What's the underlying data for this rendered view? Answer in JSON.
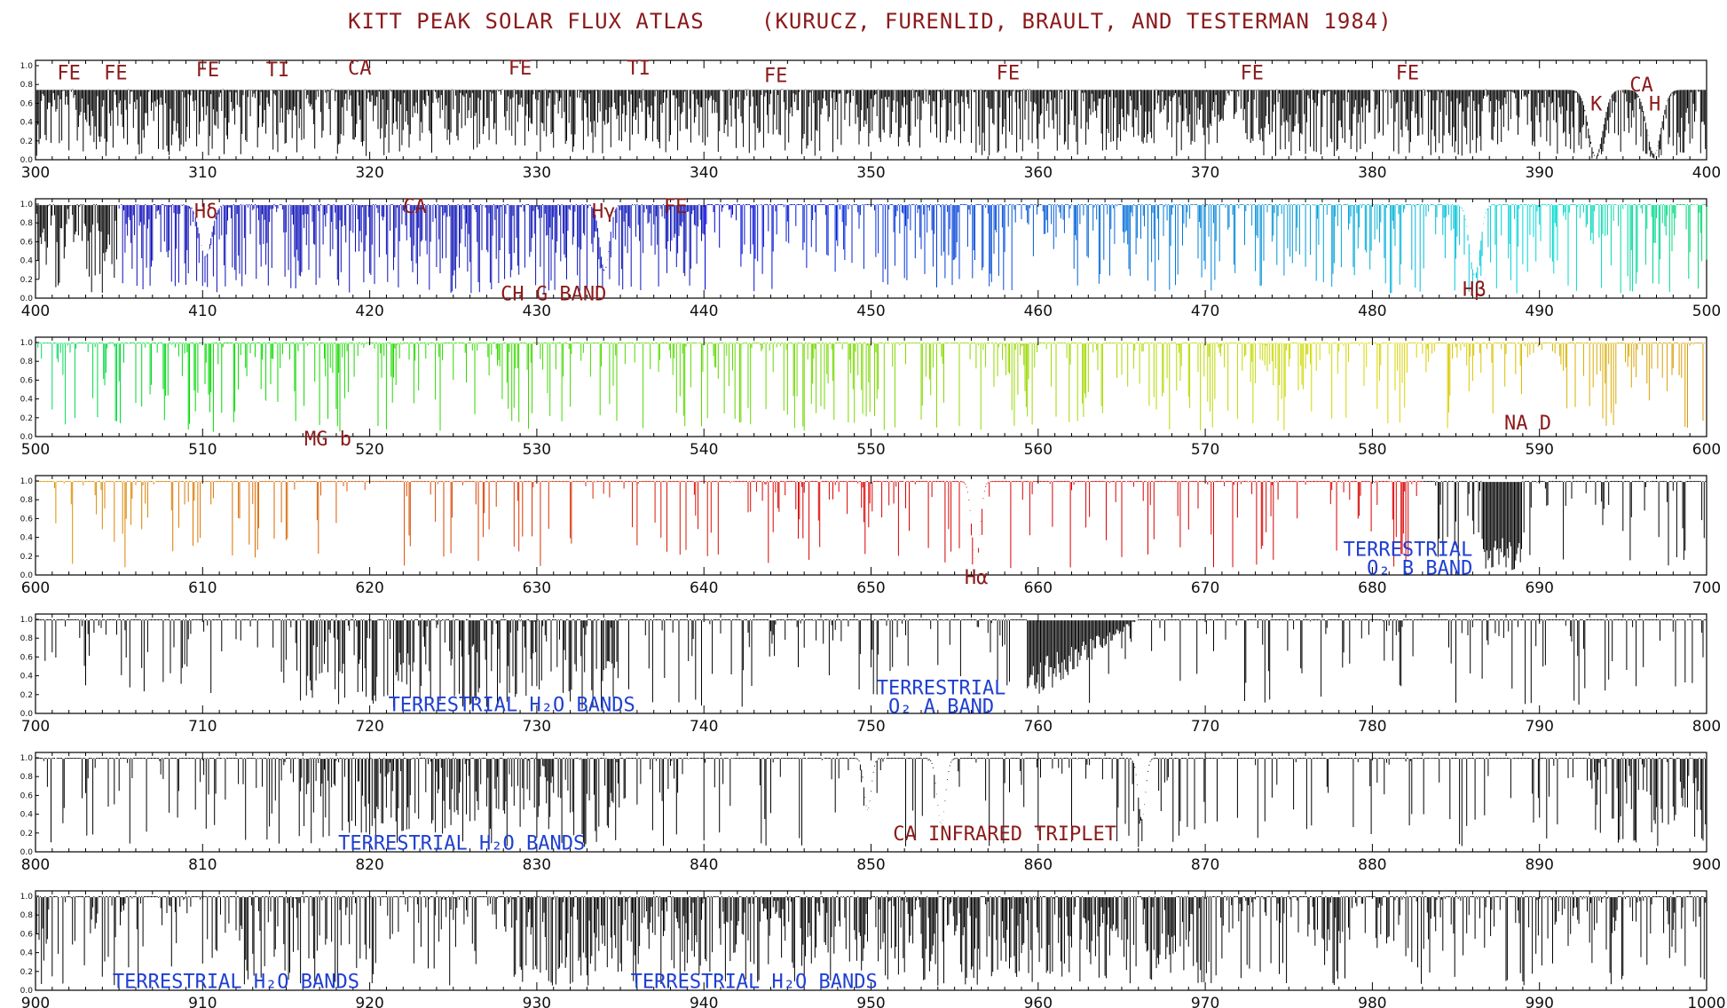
{
  "colors": {
    "line_annotation": "#8b1a1a",
    "band_annotation": "#1f3fd1",
    "axis": "#000000"
  },
  "chart_data": {
    "type": "line",
    "title_left": "KITT PEAK SOLAR FLUX ATLAS",
    "title_right": "(KURUCZ, FURENLID, BRAULT, AND TESTERMAN 1984)",
    "ylim": [
      0,
      1.0
    ],
    "yticks": [
      "0.0",
      "0.2",
      "0.4",
      "0.6",
      "0.8",
      "1.0"
    ],
    "grid": false,
    "panels": [
      {
        "xlim": [
          300,
          400
        ],
        "xticks": [
          "300",
          "310",
          "320",
          "330",
          "340",
          "350",
          "360",
          "370",
          "380",
          "390",
          "400"
        ],
        "annotations": [
          {
            "text": "FE",
            "x": 302,
            "y": 0.93,
            "color": "line"
          },
          {
            "text": "FE",
            "x": 304.8,
            "y": 0.93,
            "color": "line"
          },
          {
            "text": "FE",
            "x": 310.3,
            "y": 0.96,
            "color": "line"
          },
          {
            "text": "TI",
            "x": 314.5,
            "y": 0.96,
            "color": "line"
          },
          {
            "text": "CA",
            "x": 319.4,
            "y": 0.98,
            "color": "line"
          },
          {
            "text": "FE",
            "x": 329,
            "y": 0.98,
            "color": "line"
          },
          {
            "text": "TI",
            "x": 336.1,
            "y": 0.98,
            "color": "line"
          },
          {
            "text": "FE",
            "x": 344.3,
            "y": 0.9,
            "color": "line"
          },
          {
            "text": "FE",
            "x": 358.2,
            "y": 0.93,
            "color": "line"
          },
          {
            "text": "FE",
            "x": 372.8,
            "y": 0.93,
            "color": "line"
          },
          {
            "text": "FE",
            "x": 382.1,
            "y": 0.93,
            "color": "line"
          },
          {
            "text": "CA",
            "x": 396.1,
            "y": 0.8,
            "color": "line"
          },
          {
            "text": "K",
            "x": 393.4,
            "y": 0.6,
            "color": "line"
          },
          {
            "text": "H",
            "x": 396.9,
            "y": 0.6,
            "color": "line"
          }
        ]
      },
      {
        "xlim": [
          400,
          500
        ],
        "xticks": [
          "400",
          "410",
          "420",
          "430",
          "440",
          "450",
          "460",
          "470",
          "480",
          "490",
          "500"
        ],
        "annotations": [
          {
            "text": "Hδ",
            "x": 410.2,
            "y": 0.93,
            "color": "line"
          },
          {
            "text": "CA",
            "x": 422.7,
            "y": 0.98,
            "color": "line"
          },
          {
            "text": "Hγ",
            "x": 434.0,
            "y": 0.93,
            "color": "line"
          },
          {
            "text": "FE",
            "x": 438.3,
            "y": 0.98,
            "color": "line"
          },
          {
            "text": "CH G BAND",
            "x": 431.0,
            "y": 0.05,
            "color": "line"
          },
          {
            "text": "Hβ",
            "x": 486.1,
            "y": 0.1,
            "color": "line"
          }
        ]
      },
      {
        "xlim": [
          500,
          600
        ],
        "xticks": [
          "500",
          "510",
          "520",
          "530",
          "540",
          "550",
          "560",
          "570",
          "580",
          "590",
          "600"
        ],
        "annotations": [
          {
            "text": "MG b",
            "x": 517.5,
            "y": -0.02,
            "color": "line"
          },
          {
            "text": "NA D",
            "x": 589.3,
            "y": 0.15,
            "color": "line"
          }
        ]
      },
      {
        "xlim": [
          600,
          700
        ],
        "xticks": [
          "600",
          "610",
          "620",
          "630",
          "640",
          "650",
          "660",
          "670",
          "680",
          "690",
          "700"
        ],
        "annotations": [
          {
            "text": "Hα",
            "x": 656.3,
            "y": -0.02,
            "color": "line"
          },
          {
            "text": "TERRESTRIAL",
            "x": 686.0,
            "y": 0.28,
            "color": "band"
          },
          {
            "text": "O₂ B BAND",
            "x": 686.0,
            "y": 0.08,
            "color": "band"
          }
        ]
      },
      {
        "xlim": [
          700,
          800
        ],
        "xticks": [
          "700",
          "710",
          "720",
          "730",
          "740",
          "750",
          "760",
          "770",
          "780",
          "790",
          "800"
        ],
        "annotations": [
          {
            "text": "TERRESTRIAL H₂O BANDS",
            "x": 728.5,
            "y": 0.1,
            "color": "band"
          },
          {
            "text": "TERRESTRIAL",
            "x": 754.2,
            "y": 0.28,
            "color": "band"
          },
          {
            "text": "O₂ A BAND",
            "x": 754.2,
            "y": 0.08,
            "color": "band"
          }
        ]
      },
      {
        "xlim": [
          800,
          900
        ],
        "xticks": [
          "800",
          "810",
          "820",
          "830",
          "840",
          "850",
          "860",
          "870",
          "880",
          "890",
          "900"
        ],
        "annotations": [
          {
            "text": "TERRESTRIAL H₂O BANDS",
            "x": 825.5,
            "y": 0.1,
            "color": "band"
          },
          {
            "text": "CA INFRARED TRIPLET",
            "x": 858.0,
            "y": 0.2,
            "color": "line"
          }
        ]
      },
      {
        "xlim": [
          900,
          1000
        ],
        "xticks": [
          "900",
          "910",
          "920",
          "930",
          "940",
          "950",
          "960",
          "970",
          "980",
          "990",
          "1000"
        ],
        "annotations": [
          {
            "text": "TERRESTRIAL H₂O BANDS",
            "x": 912.0,
            "y": 0.1,
            "color": "band"
          },
          {
            "text": "TERRESTRIAL H₂O BANDS",
            "x": 943.0,
            "y": 0.1,
            "color": "band"
          }
        ]
      }
    ]
  }
}
